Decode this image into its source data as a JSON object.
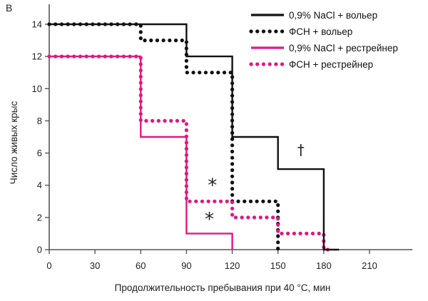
{
  "panel_label": "B",
  "chart_data": {
    "type": "line",
    "step": true,
    "xlabel": "Продолжительность пребывания при 40 °С, мин",
    "ylabel": "Число живых крыс",
    "xlim": [
      0,
      240
    ],
    "ylim": [
      0,
      15
    ],
    "x_ticks": [
      0,
      30,
      60,
      90,
      120,
      150,
      180,
      210
    ],
    "y_ticks": [
      0,
      2,
      4,
      6,
      8,
      10,
      12,
      14
    ],
    "grid": false,
    "legend_position": "top-right",
    "series": [
      {
        "name": "0,9% NaCl + вольер",
        "color": "#111111",
        "style": "solid",
        "points": [
          [
            0,
            14
          ],
          [
            90,
            14
          ],
          [
            90,
            12
          ],
          [
            120,
            12
          ],
          [
            120,
            7
          ],
          [
            150,
            7
          ],
          [
            150,
            5
          ],
          [
            180,
            5
          ],
          [
            180,
            0
          ],
          [
            190,
            0
          ]
        ]
      },
      {
        "name": "ФСН + вольер",
        "color": "#111111",
        "style": "dotted",
        "points": [
          [
            0,
            14
          ],
          [
            60,
            14
          ],
          [
            60,
            13
          ],
          [
            90,
            13
          ],
          [
            90,
            11
          ],
          [
            120,
            11
          ],
          [
            120,
            3
          ],
          [
            150,
            3
          ],
          [
            150,
            0
          ]
        ]
      },
      {
        "name": "0,9% NaCl + рестрейнер",
        "color": "#e0197d",
        "style": "solid",
        "points": [
          [
            0,
            12
          ],
          [
            60,
            12
          ],
          [
            60,
            7
          ],
          [
            90,
            7
          ],
          [
            90,
            1
          ],
          [
            120,
            1
          ],
          [
            120,
            0
          ]
        ]
      },
      {
        "name": "ФСН + рестрейнер",
        "color": "#e0197d",
        "style": "dotted",
        "points": [
          [
            0,
            12
          ],
          [
            60,
            12
          ],
          [
            60,
            8
          ],
          [
            90,
            8
          ],
          [
            90,
            3
          ],
          [
            120,
            3
          ],
          [
            120,
            2
          ],
          [
            150,
            2
          ],
          [
            150,
            1
          ],
          [
            180,
            1
          ],
          [
            180,
            0
          ],
          [
            185,
            0
          ]
        ]
      }
    ],
    "annotations": [
      {
        "text": "*",
        "x": 107,
        "y": 3.6,
        "size": "large"
      },
      {
        "text": "*",
        "x": 105,
        "y": 1.5,
        "size": "large"
      },
      {
        "text": "†",
        "x": 165,
        "y": 5.9,
        "size": "medium"
      }
    ]
  }
}
